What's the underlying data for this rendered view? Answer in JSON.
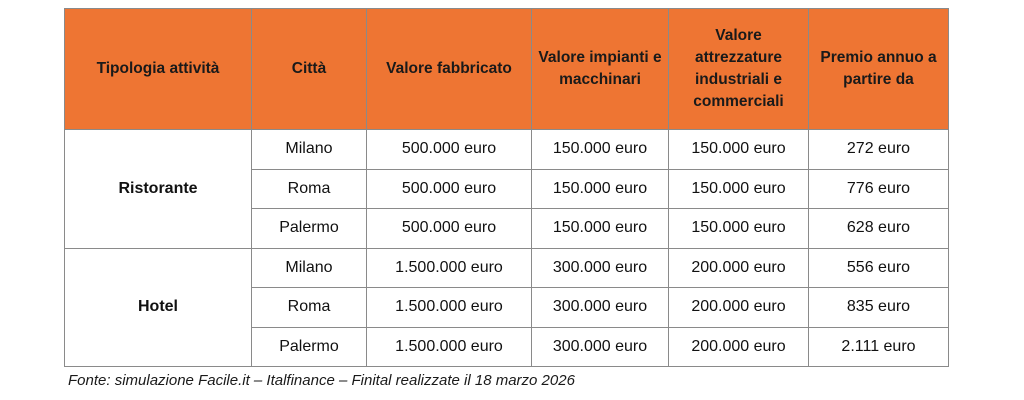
{
  "table": {
    "headers": [
      "Tipologia attività",
      "Città",
      "Valore fabbricato",
      "Valore impianti e macchinari",
      "Valore attrezzature industriali e commerciali",
      "Premio annuo a partire da"
    ],
    "groups": [
      {
        "name": "Ristorante",
        "rows": [
          [
            "Milano",
            "500.000 euro",
            "150.000 euro",
            "150.000 euro",
            "272 euro"
          ],
          [
            "Roma",
            "500.000 euro",
            "150.000 euro",
            "150.000 euro",
            "776 euro"
          ],
          [
            "Palermo",
            "500.000 euro",
            "150.000 euro",
            "150.000 euro",
            "628 euro"
          ]
        ]
      },
      {
        "name": "Hotel",
        "rows": [
          [
            "Milano",
            "1.500.000 euro",
            "300.000 euro",
            "200.000 euro",
            "556 euro"
          ],
          [
            "Roma",
            "1.500.000 euro",
            "300.000 euro",
            "200.000 euro",
            "835 euro"
          ],
          [
            "Palermo",
            "1.500.000 euro",
            "300.000 euro",
            "200.000 euro",
            "2.111 euro"
          ]
        ]
      }
    ]
  },
  "source": "Fonte: simulazione Facile.it – Italfinance – Finital realizzate il 18 marzo 2026",
  "colors": {
    "header_bg": "#ee7533",
    "border": "#8a8a8a"
  }
}
